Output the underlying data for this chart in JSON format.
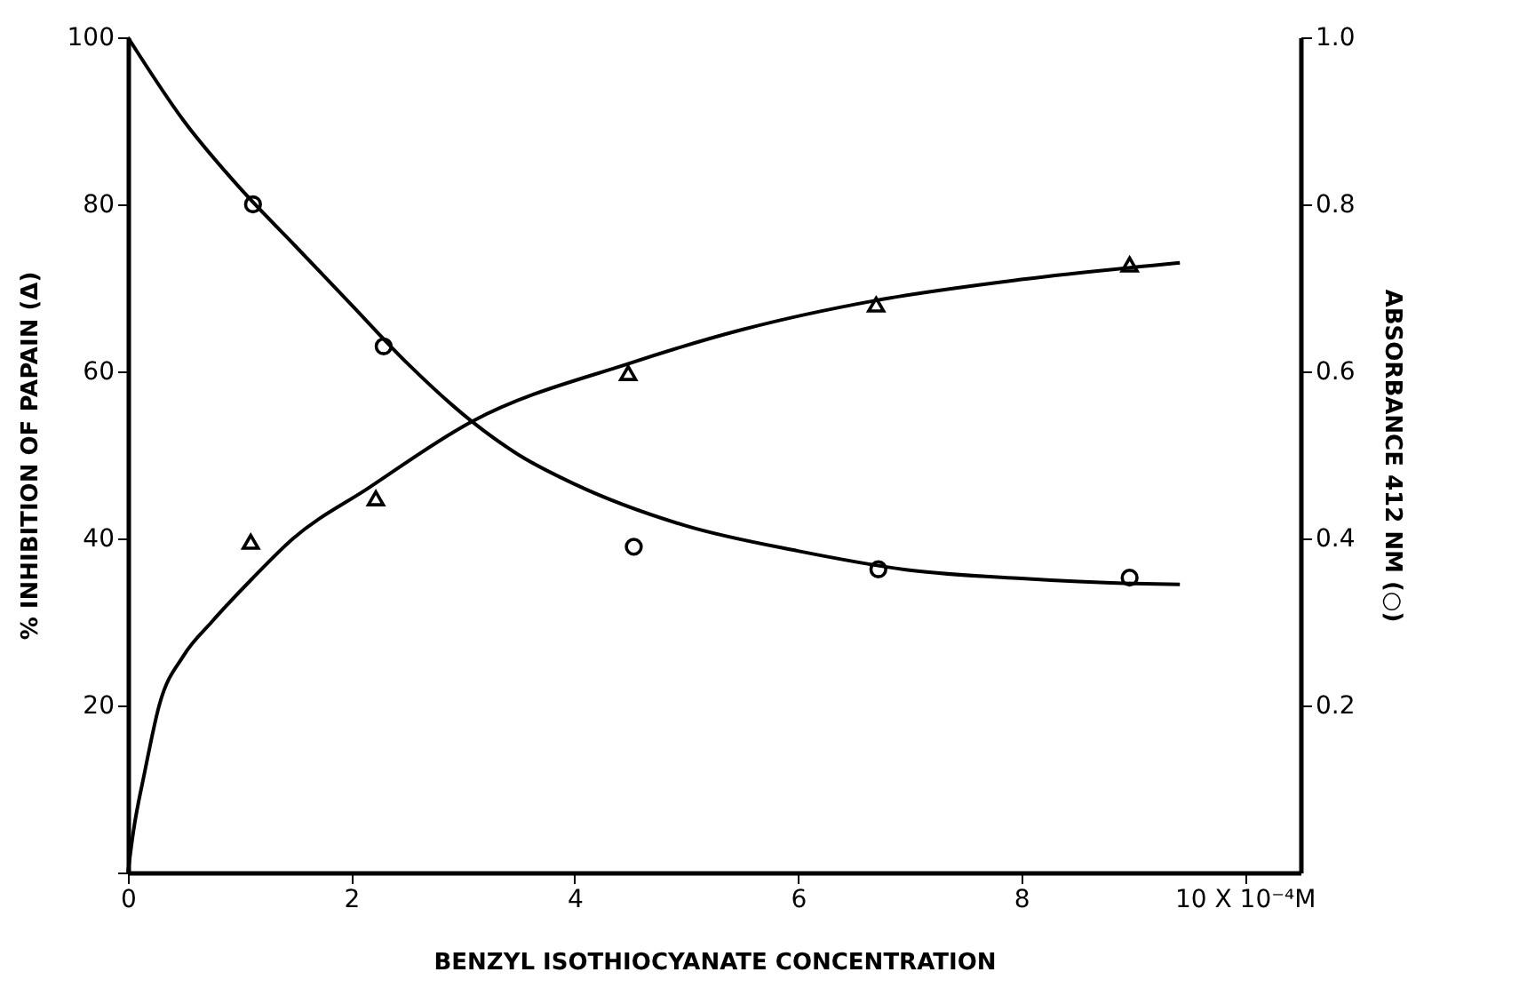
{
  "chart_data": {
    "type": "scatter",
    "xlabel": "BENZYL ISOTHIOCYANATE CONCENTRATION",
    "ylabel": "% INHIBITION OF PAPAIN (Δ)",
    "y2label": "ABSORBANCE 412 NM (○)",
    "xlim": [
      0,
      10.5
    ],
    "xticks": [
      0,
      2,
      4,
      6,
      8,
      {
        "value": 10,
        "label": "10 X 10⁻⁴M"
      }
    ],
    "ylim": [
      0,
      100
    ],
    "yticks": [
      {
        "value": 0,
        "label": null
      },
      20,
      40,
      60,
      80,
      100
    ],
    "y2lim": [
      0,
      1
    ],
    "y2ticks": [
      0.2,
      0.4,
      0.6,
      0.8,
      {
        "value": 1,
        "label": "1.0"
      }
    ],
    "grid": false,
    "series": [
      {
        "type": "line",
        "color": "#000000",
        "line_style": "solid",
        "marker": "none",
        "x": [
          0,
          0.05,
          0.15,
          0.28,
          0.5,
          0.75,
          1.1,
          1.48,
          2.15,
          3.08,
          4.5,
          5.5,
          6.7,
          8,
          9.42
        ],
        "values": [
          0,
          5,
          12,
          20,
          26,
          30,
          35,
          40,
          46,
          54,
          61,
          65,
          68.5,
          71,
          73
        ]
      },
      {
        "color": "#000000",
        "marker": "triangle",
        "x": [
          1.1,
          2.22,
          4.48,
          6.7,
          8.97
        ],
        "values": [
          39.6,
          44.8,
          59.8,
          68,
          72.8
        ]
      },
      {
        "type": "line",
        "axis": "y2",
        "color": "#000000",
        "line_style": "solid",
        "marker": "none",
        "x": [
          0,
          0.5,
          1,
          1.5,
          2,
          2.5,
          3.08,
          3.5,
          4,
          5,
          6,
          7,
          8,
          9,
          9.42
        ],
        "values": [
          1.0,
          0.9,
          0.82,
          0.75,
          0.68,
          0.61,
          0.54,
          0.5,
          0.465,
          0.415,
          0.385,
          0.362,
          0.352,
          0.346,
          0.345
        ]
      },
      {
        "axis": "y2",
        "color": "#000000",
        "marker": "circle",
        "x": [
          1.12,
          2.29,
          4.53,
          6.72,
          8.97
        ],
        "values": [
          0.8,
          0.63,
          0.39,
          0.363,
          0.353
        ]
      }
    ]
  }
}
